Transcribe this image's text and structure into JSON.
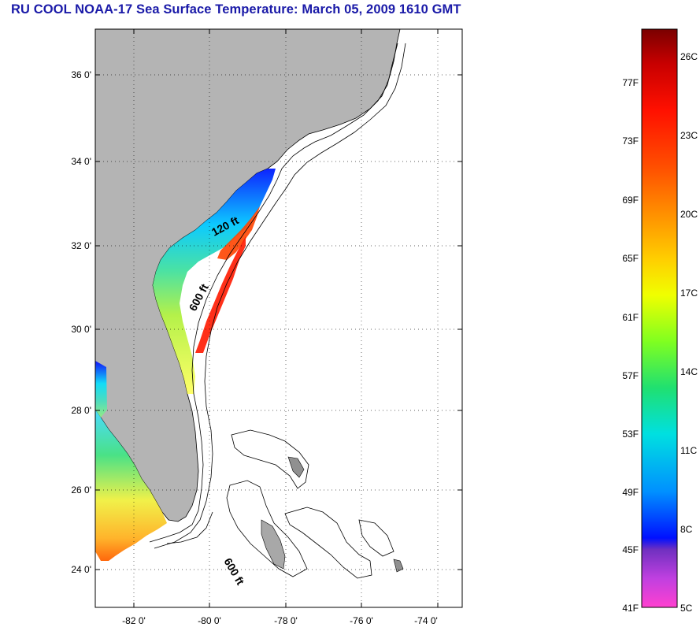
{
  "title": "RU COOL  NOAA-17  Sea Surface Temperature:  March 05, 2009 1610 GMT",
  "map": {
    "lat_labels": [
      "36 0'",
      "34 0'",
      "32 0'",
      "30 0'",
      "28 0'",
      "26 0'",
      "24 0'"
    ],
    "lon_labels": [
      "-82 0'",
      "-80 0'",
      "-78 0'",
      "-76 0'",
      "-74 0'"
    ],
    "contour_labels": [
      "120 ft",
      "600 ft",
      "600 ft"
    ],
    "land_color": "#b4b4b4"
  },
  "colorbar": {
    "fahrenheit": [
      "77F",
      "73F",
      "69F",
      "65F",
      "61F",
      "57F",
      "53F",
      "49F",
      "45F",
      "41F"
    ],
    "celsius": [
      "26C",
      "23C",
      "20C",
      "17C",
      "14C",
      "11C",
      "8C",
      "5C"
    ]
  }
}
